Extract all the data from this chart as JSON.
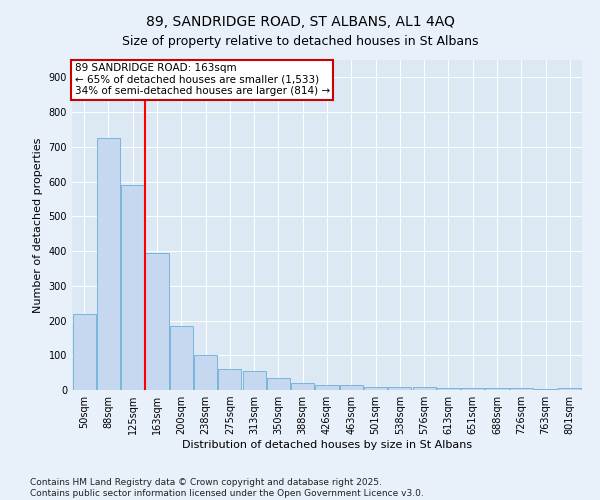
{
  "title": "89, SANDRIDGE ROAD, ST ALBANS, AL1 4AQ",
  "subtitle": "Size of property relative to detached houses in St Albans",
  "xlabel": "Distribution of detached houses by size in St Albans",
  "ylabel": "Number of detached properties",
  "categories": [
    "50sqm",
    "88sqm",
    "125sqm",
    "163sqm",
    "200sqm",
    "238sqm",
    "275sqm",
    "313sqm",
    "350sqm",
    "388sqm",
    "426sqm",
    "463sqm",
    "501sqm",
    "538sqm",
    "576sqm",
    "613sqm",
    "651sqm",
    "688sqm",
    "726sqm",
    "763sqm",
    "801sqm"
  ],
  "values": [
    220,
    725,
    590,
    395,
    185,
    100,
    60,
    55,
    35,
    20,
    15,
    15,
    10,
    10,
    10,
    5,
    5,
    5,
    5,
    3,
    5
  ],
  "bar_color": "#c5d8ef",
  "bar_edge_color": "#6aaed6",
  "red_line_index": 3,
  "annotation_line1": "89 SANDRIDGE ROAD: 163sqm",
  "annotation_line2": "← 65% of detached houses are smaller (1,533)",
  "annotation_line3": "34% of semi-detached houses are larger (814) →",
  "annotation_box_facecolor": "#ffffff",
  "annotation_box_edgecolor": "#cc0000",
  "ylim": [
    0,
    950
  ],
  "yticks": [
    0,
    100,
    200,
    300,
    400,
    500,
    600,
    700,
    800,
    900
  ],
  "fig_facecolor": "#e8f0fa",
  "plot_bg_color": "#dce9f5",
  "footer": "Contains HM Land Registry data © Crown copyright and database right 2025.\nContains public sector information licensed under the Open Government Licence v3.0.",
  "title_fontsize": 10,
  "xlabel_fontsize": 8,
  "ylabel_fontsize": 8,
  "tick_fontsize": 7,
  "annotation_fontsize": 7.5,
  "footer_fontsize": 6.5
}
